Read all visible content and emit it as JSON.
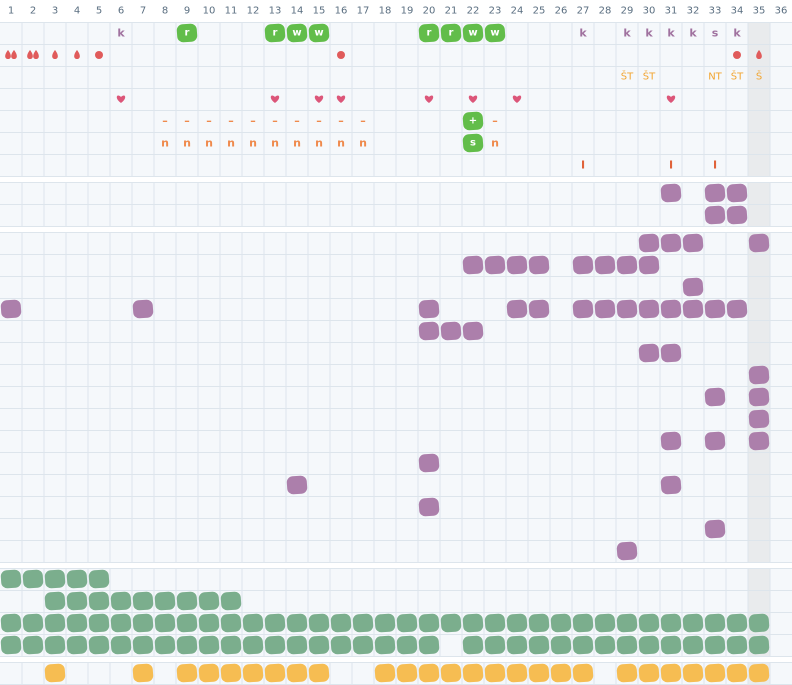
{
  "columns": [
    1,
    2,
    3,
    4,
    5,
    6,
    7,
    8,
    9,
    10,
    11,
    12,
    13,
    14,
    15,
    16,
    17,
    18,
    19,
    20,
    21,
    22,
    23,
    24,
    25,
    26,
    27,
    28,
    29,
    30,
    31,
    32,
    33,
    34,
    35,
    36
  ],
  "sections": [
    {
      "rows": [
        {
          "items": [
            {
              "day": 6,
              "kind": "letter",
              "text": "k"
            },
            {
              "day": 9,
              "kind": "badge",
              "text": "r"
            },
            {
              "day": 13,
              "kind": "badge",
              "text": "r"
            },
            {
              "day": 14,
              "kind": "badge",
              "text": "w"
            },
            {
              "day": 15,
              "kind": "badge",
              "text": "w"
            },
            {
              "day": 20,
              "kind": "badge",
              "text": "r"
            },
            {
              "day": 21,
              "kind": "badge",
              "text": "r"
            },
            {
              "day": 22,
              "kind": "badge",
              "text": "w"
            },
            {
              "day": 23,
              "kind": "badge",
              "text": "w"
            },
            {
              "day": 27,
              "kind": "letter",
              "text": "k"
            },
            {
              "day": 29,
              "kind": "letter",
              "text": "k"
            },
            {
              "day": 30,
              "kind": "letter",
              "text": "k"
            },
            {
              "day": 31,
              "kind": "letter",
              "text": "k"
            },
            {
              "day": 32,
              "kind": "letter",
              "text": "k"
            },
            {
              "day": 33,
              "kind": "letter",
              "text": "s"
            },
            {
              "day": 34,
              "kind": "letter",
              "text": "k"
            }
          ]
        },
        {
          "items": [
            {
              "day": 1,
              "kind": "drop",
              "count": 2
            },
            {
              "day": 2,
              "kind": "drop",
              "count": 2
            },
            {
              "day": 3,
              "kind": "drop",
              "count": 1
            },
            {
              "day": 4,
              "kind": "drop",
              "count": 1
            },
            {
              "day": 5,
              "kind": "dot"
            },
            {
              "day": 16,
              "kind": "dot"
            },
            {
              "day": 34,
              "kind": "dot"
            },
            {
              "day": 35,
              "kind": "drop",
              "count": 1
            }
          ]
        },
        {
          "items": [
            {
              "day": 29,
              "kind": "label",
              "text": "ŠT"
            },
            {
              "day": 30,
              "kind": "label",
              "text": "ŠT"
            },
            {
              "day": 33,
              "kind": "label",
              "text": "NT"
            },
            {
              "day": 34,
              "kind": "label",
              "text": "ŠT"
            },
            {
              "day": 35,
              "kind": "label",
              "text": "Š"
            }
          ]
        },
        {
          "items": [
            {
              "day": 6,
              "kind": "heart"
            },
            {
              "day": 13,
              "kind": "heart"
            },
            {
              "day": 15,
              "kind": "heart"
            },
            {
              "day": 16,
              "kind": "heart"
            },
            {
              "day": 20,
              "kind": "heart"
            },
            {
              "day": 22,
              "kind": "heart"
            },
            {
              "day": 24,
              "kind": "heart"
            },
            {
              "day": 31,
              "kind": "heart"
            }
          ]
        },
        {
          "items": [
            {
              "day": 8,
              "kind": "dash",
              "text": "–"
            },
            {
              "day": 9,
              "kind": "dash",
              "text": "–"
            },
            {
              "day": 10,
              "kind": "dash",
              "text": "–"
            },
            {
              "day": 11,
              "kind": "dash",
              "text": "–"
            },
            {
              "day": 12,
              "kind": "dash",
              "text": "–"
            },
            {
              "day": 13,
              "kind": "dash",
              "text": "–"
            },
            {
              "day": 14,
              "kind": "dash",
              "text": "–"
            },
            {
              "day": 15,
              "kind": "dash",
              "text": "–"
            },
            {
              "day": 16,
              "kind": "dash",
              "text": "–"
            },
            {
              "day": 17,
              "kind": "dash",
              "text": "–"
            },
            {
              "day": 22,
              "kind": "badge",
              "text": "+"
            },
            {
              "day": 23,
              "kind": "dash",
              "text": "–"
            }
          ]
        },
        {
          "items": [
            {
              "day": 8,
              "kind": "dash",
              "text": "n"
            },
            {
              "day": 9,
              "kind": "dash",
              "text": "n"
            },
            {
              "day": 10,
              "kind": "dash",
              "text": "n"
            },
            {
              "day": 11,
              "kind": "dash",
              "text": "n"
            },
            {
              "day": 12,
              "kind": "dash",
              "text": "n"
            },
            {
              "day": 13,
              "kind": "dash",
              "text": "n"
            },
            {
              "day": 14,
              "kind": "dash",
              "text": "n"
            },
            {
              "day": 15,
              "kind": "dash",
              "text": "n"
            },
            {
              "day": 16,
              "kind": "dash",
              "text": "n"
            },
            {
              "day": 17,
              "kind": "dash",
              "text": "n"
            },
            {
              "day": 22,
              "kind": "badge",
              "text": "s"
            },
            {
              "day": 23,
              "kind": "dash",
              "text": "n"
            }
          ]
        },
        {
          "items": [
            {
              "day": 27,
              "kind": "mark",
              "text": "I"
            },
            {
              "day": 31,
              "kind": "mark",
              "text": "I"
            },
            {
              "day": 33,
              "kind": "mark",
              "text": "I"
            }
          ]
        }
      ]
    },
    {
      "rows": [
        {
          "color": "#ac7fab",
          "days": [
            31,
            33,
            34
          ]
        },
        {
          "color": "#ac7fab",
          "days": [
            33,
            34
          ]
        }
      ]
    },
    {
      "rows": [
        {
          "color": "#ac7fab",
          "days": [
            30,
            31,
            32,
            35
          ]
        },
        {
          "color": "#ac7fab",
          "days": [
            22,
            23,
            24,
            25,
            27,
            28,
            29,
            30
          ]
        },
        {
          "color": "#ac7fab",
          "days": [
            32
          ]
        },
        {
          "color": "#ac7fab",
          "days": [
            1,
            7,
            20,
            24,
            25,
            27,
            28,
            29,
            30,
            31,
            32,
            33,
            34
          ]
        },
        {
          "color": "#ac7fab",
          "days": [
            20,
            21,
            22
          ]
        },
        {
          "color": "#ac7fab",
          "days": [
            30,
            31
          ]
        },
        {
          "color": "#ac7fab",
          "days": [
            35
          ]
        },
        {
          "color": "#ac7fab",
          "days": [
            33,
            35
          ]
        },
        {
          "color": "#ac7fab",
          "days": [
            35
          ]
        },
        {
          "color": "#ac7fab",
          "days": [
            31,
            33,
            35
          ]
        },
        {
          "color": "#ac7fab",
          "days": [
            20
          ]
        },
        {
          "color": "#ac7fab",
          "days": [
            14,
            31
          ]
        },
        {
          "color": "#ac7fab",
          "days": [
            20
          ]
        },
        {
          "color": "#ac7fab",
          "days": [
            33
          ]
        },
        {
          "color": "#ac7fab",
          "days": [
            29
          ]
        }
      ]
    },
    {
      "rows": [
        {
          "color": "#7bae8d",
          "days": [
            1,
            2,
            3,
            4,
            5
          ]
        },
        {
          "color": "#7bae8d",
          "days": [
            3,
            4,
            5,
            6,
            7,
            8,
            9,
            10,
            11
          ]
        },
        {
          "color": "#7bae8d",
          "days": [
            1,
            2,
            3,
            4,
            5,
            6,
            7,
            8,
            9,
            10,
            11,
            12,
            13,
            14,
            15,
            16,
            17,
            18,
            19,
            20,
            21,
            22,
            23,
            24,
            25,
            26,
            27,
            28,
            29,
            30,
            31,
            32,
            33,
            34,
            35
          ]
        },
        {
          "color": "#7bae8d",
          "days": [
            1,
            2,
            3,
            4,
            5,
            6,
            7,
            8,
            9,
            10,
            11,
            12,
            13,
            14,
            15,
            16,
            17,
            18,
            19,
            20,
            22,
            23,
            24,
            25,
            26,
            27,
            28,
            29,
            30,
            31,
            32,
            33,
            34,
            35
          ]
        }
      ]
    },
    {
      "rows": [
        {
          "color": "#f6bd52",
          "days": [
            3,
            7,
            9,
            10,
            11,
            12,
            13,
            14,
            15,
            18,
            19,
            20,
            21,
            22,
            23,
            24,
            25,
            26,
            27,
            29,
            30,
            31,
            32,
            33,
            34,
            35
          ]
        }
      ]
    }
  ]
}
